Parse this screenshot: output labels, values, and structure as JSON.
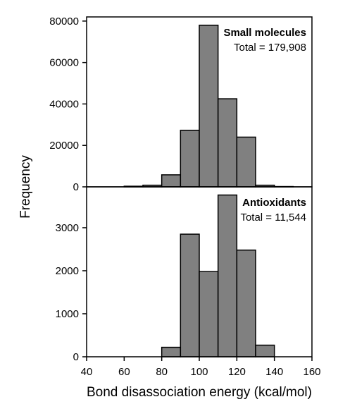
{
  "chart_data": [
    {
      "type": "bar",
      "title": "Small molecules",
      "subtitle": "Total = 179,908",
      "bin_edges": [
        40,
        50,
        60,
        70,
        80,
        90,
        100,
        110,
        120,
        130,
        140,
        150,
        160
      ],
      "values": [
        0,
        0,
        300,
        800,
        5800,
        27300,
        78000,
        42500,
        24000,
        800,
        150,
        0
      ],
      "ylim": [
        0,
        82000
      ],
      "yticks": [
        0,
        20000,
        40000,
        60000,
        80000
      ],
      "bar_color": "#808080"
    },
    {
      "type": "bar",
      "title": "Antioxidants",
      "subtitle": "Total = 11,544",
      "bin_edges": [
        40,
        50,
        60,
        70,
        80,
        90,
        100,
        110,
        120,
        130,
        140,
        150,
        160
      ],
      "values": [
        0,
        0,
        0,
        0,
        220,
        2850,
        1980,
        3760,
        2480,
        270,
        0,
        0
      ],
      "ylim": [
        0,
        3950
      ],
      "yticks": [
        0,
        1000,
        2000,
        3000
      ],
      "bar_color": "#808080"
    }
  ],
  "shared_x": {
    "xlim": [
      40,
      160
    ],
    "xticks": [
      40,
      60,
      80,
      100,
      120,
      140,
      160
    ],
    "xlabel": "Bond disassociation energy (kcal/mol)"
  },
  "ylabel": "Frequency"
}
